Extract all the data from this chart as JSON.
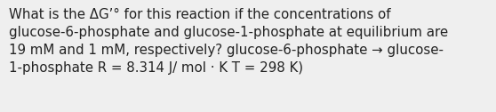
{
  "text": "What is the ΔG’° for this reaction if the concentrations of\nglucose-6-phosphate and glucose-1-phosphate at equilibrium are\n19 mM and 1 mM, respectively? glucose-6-phosphate → glucose-\n1-phosphate R = 8.314 J/ mol · K T = 298 K)",
  "background_color": "#efefef",
  "text_color": "#222222",
  "font_size": 10.8,
  "font_family": "DejaVu Sans",
  "fig_width": 5.58,
  "fig_height": 1.26,
  "dpi": 100
}
